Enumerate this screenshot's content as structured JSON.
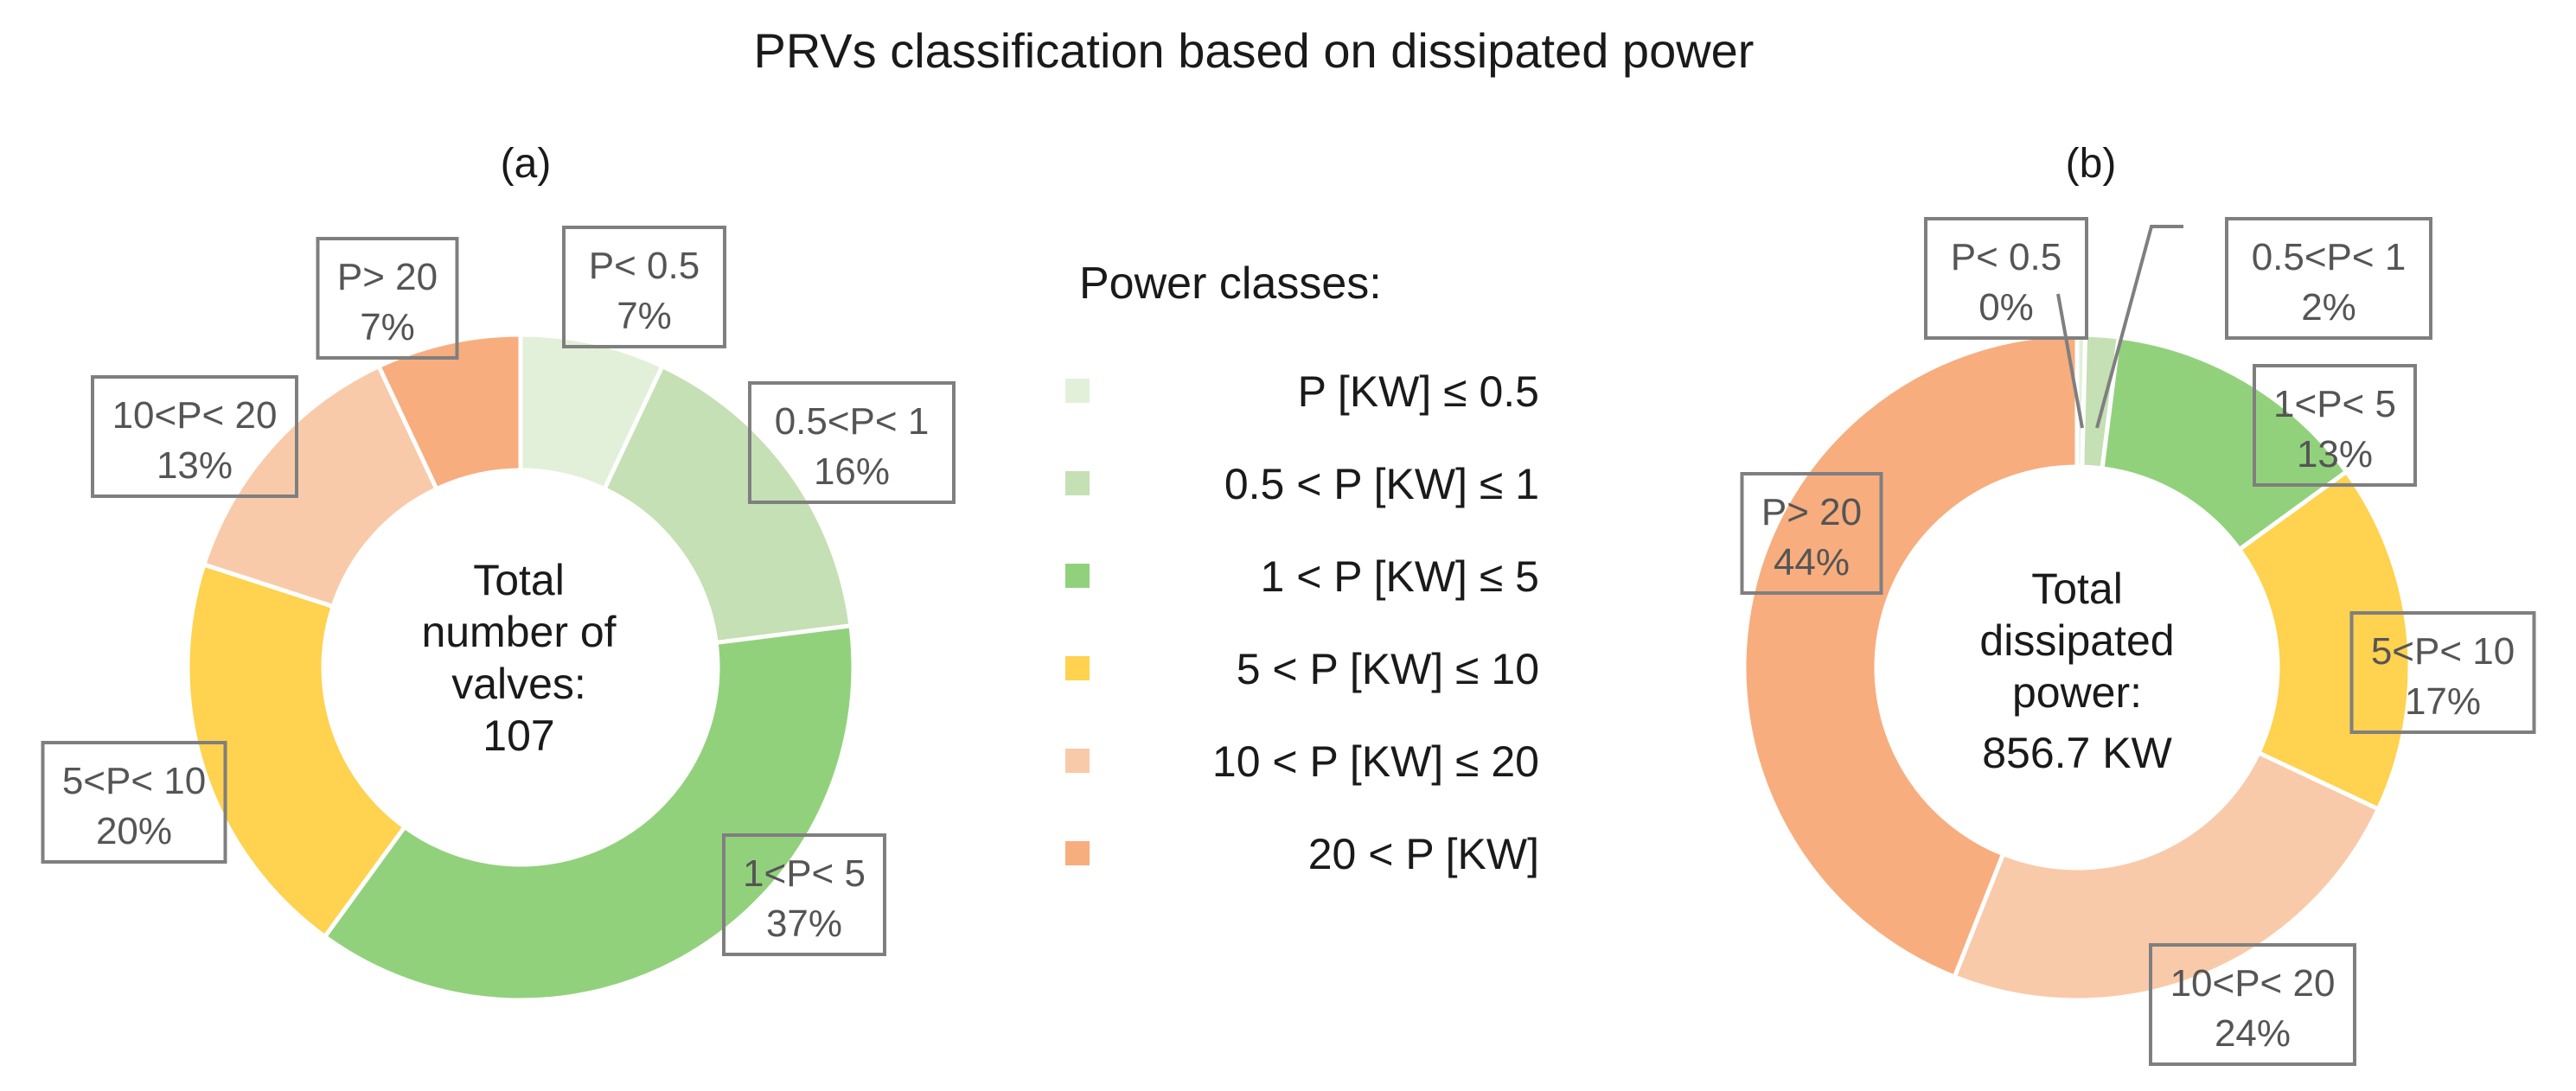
{
  "title": "PRVs classification based on dissipated power",
  "legend": {
    "title": "Power classes:",
    "entries": [
      {
        "label": "P [KW] ≤ 0.5",
        "color": "#e2f0d9"
      },
      {
        "label": "0.5 < P [KW] ≤ 1",
        "color": "#c5e0b4"
      },
      {
        "label": "1 < P [KW] ≤ 5",
        "color": "#92d17c"
      },
      {
        "label": "5 < P [KW] ≤ 10",
        "color": "#ffd24f"
      },
      {
        "label": "10 < P [KW] ≤ 20",
        "color": "#f9caa9"
      },
      {
        "label": "20 < P [KW]",
        "color": "#f8ad7e"
      }
    ]
  },
  "chart_data": [
    {
      "type": "pie",
      "variant": "donut",
      "panel_label": "(a)",
      "center_text": [
        "Total",
        "number of",
        "valves:",
        "107"
      ],
      "slices": [
        {
          "label": "P< 0.5",
          "value": 7,
          "display": "7%",
          "color": "#e2f0d9"
        },
        {
          "label": "0.5<P< 1",
          "value": 16,
          "display": "16%",
          "color": "#c5e0b4"
        },
        {
          "label": "1<P< 5",
          "value": 37,
          "display": "37%",
          "color": "#92d17c"
        },
        {
          "label": "5<P< 10",
          "value": 20,
          "display": "20%",
          "color": "#ffd24f"
        },
        {
          "label": "10<P< 20",
          "value": 13,
          "display": "13%",
          "color": "#f9caa9"
        },
        {
          "label": "P> 20",
          "value": 7,
          "display": "7%",
          "color": "#f8ad7e"
        }
      ]
    },
    {
      "type": "pie",
      "variant": "donut",
      "panel_label": "(b)",
      "center_text": [
        "Total",
        "dissipated",
        "power:",
        "856.7 KW"
      ],
      "slices": [
        {
          "label": "P< 0.5",
          "value": 0.4,
          "display": "0%",
          "color": "#e2f0d9"
        },
        {
          "label": "0.5<P< 1",
          "value": 1.6,
          "display": "2%",
          "color": "#c5e0b4"
        },
        {
          "label": "1<P< 5",
          "value": 13,
          "display": "13%",
          "color": "#92d17c"
        },
        {
          "label": "5<P< 10",
          "value": 17,
          "display": "17%",
          "color": "#ffd24f"
        },
        {
          "label": "10<P< 20",
          "value": 24,
          "display": "24%",
          "color": "#f9caa9"
        },
        {
          "label": "P> 20",
          "value": 44,
          "display": "44%",
          "color": "#f8ad7e"
        }
      ]
    }
  ]
}
